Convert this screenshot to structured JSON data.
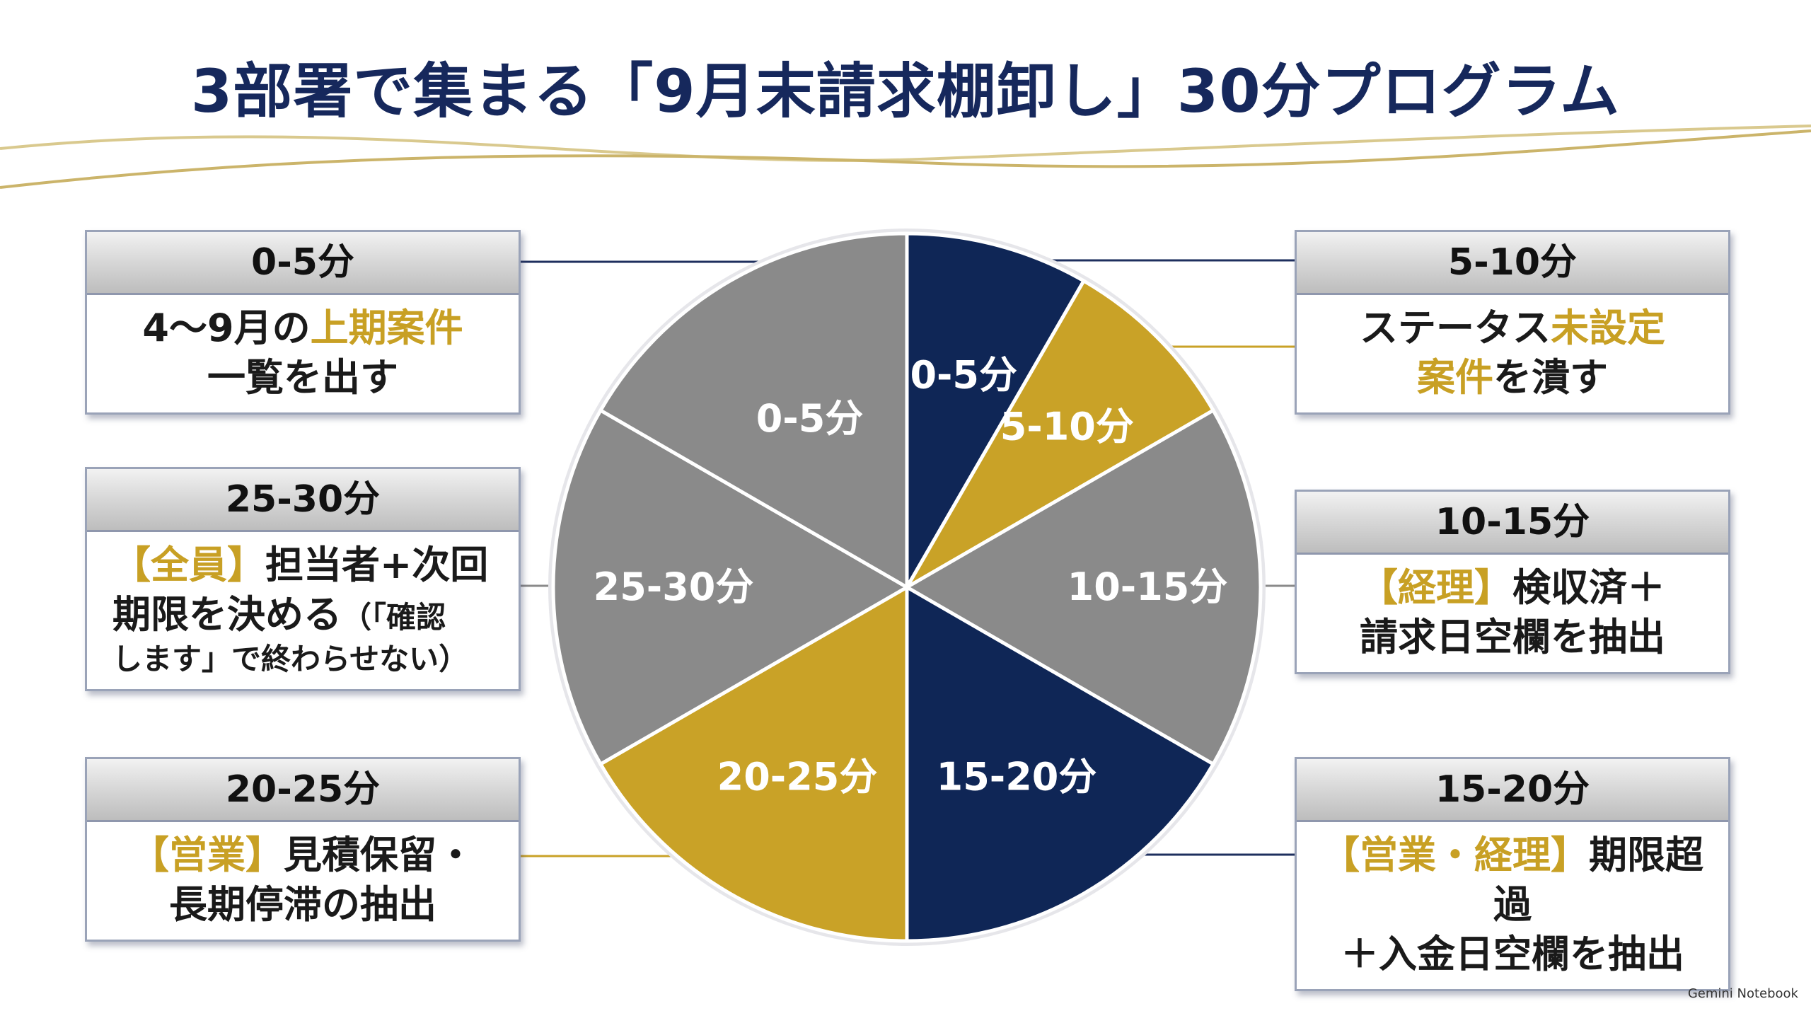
{
  "title": "3部署で集まる「9月末請求棚卸し」30分プログラム",
  "colors": {
    "navy": "#0f2656",
    "gold": "#c9a227",
    "gray": "#8a8a8a",
    "title": "#16285c"
  },
  "pie": {
    "slices": [
      {
        "label": "0-5分",
        "color": "navy"
      },
      {
        "label": "5-10分",
        "color": "gold"
      },
      {
        "label": "10-15分",
        "color": "gray"
      },
      {
        "label": "15-20分",
        "color": "navy"
      },
      {
        "label": "20-25分",
        "color": "gold"
      },
      {
        "label": "25-30分",
        "color": "gray"
      },
      {
        "label": "0-5分",
        "color": "gray"
      }
    ]
  },
  "cards": {
    "c0": {
      "header": "0-5分",
      "l1a": "4〜9月の",
      "l1b": "上期案件",
      "l2": "一覧を出す"
    },
    "c25": {
      "header": "25-30分",
      "tag": "【全員】",
      "l1": "担当者+次回",
      "l2a": "期限を決める",
      "l2b": "（「確認",
      "l3": "します」で終わらせない）"
    },
    "c20": {
      "header": "20-25分",
      "tag": "【営業】",
      "l1": "見積保留・",
      "l2": "長期停滞の抽出"
    },
    "c5": {
      "header": "5-10分",
      "l1a": "ステータス",
      "l1b": "未設定",
      "l2a": "案件",
      "l2b": "を潰す"
    },
    "c10": {
      "header": "10-15分",
      "tag": "【経理】",
      "l1": "検収済＋",
      "l2": "請求日空欄を抽出"
    },
    "c15": {
      "header": "15-20分",
      "tag": "【営業・経理】",
      "l1": "期限超過",
      "l2": "＋入金日空欄を抽出"
    }
  },
  "watermark": "Gemini Notebook"
}
